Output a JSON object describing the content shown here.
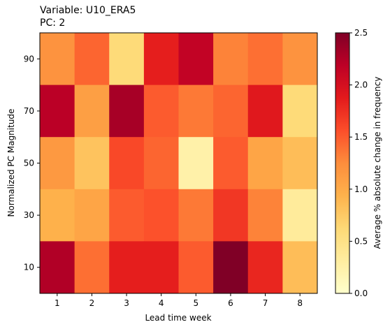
{
  "chart_data": {
    "type": "heatmap",
    "title_lines": [
      "Variable: U10_ERA5",
      "PC: 2"
    ],
    "xlabel": "Lead time week",
    "ylabel": "Normalized PC Magnitude",
    "x_categories": [
      "1",
      "2",
      "3",
      "4",
      "5",
      "6",
      "7",
      "8"
    ],
    "y_categories": [
      "90",
      "70",
      "50",
      "30",
      "10"
    ],
    "values": [
      [
        1.2,
        1.45,
        0.6,
        1.85,
        2.15,
        1.3,
        1.4,
        1.2
      ],
      [
        2.2,
        1.1,
        2.3,
        1.5,
        1.35,
        1.45,
        1.9,
        0.6
      ],
      [
        1.15,
        0.8,
        1.6,
        1.45,
        0.25,
        1.5,
        1.05,
        0.85
      ],
      [
        0.95,
        1.05,
        1.5,
        1.55,
        1.35,
        1.7,
        1.3,
        0.35
      ],
      [
        2.25,
        1.4,
        1.85,
        1.85,
        1.5,
        2.5,
        1.8,
        0.85
      ]
    ],
    "colormap": "YlOrRd",
    "colorbar": {
      "label": "Average % absolute change in frequency",
      "range": [
        0,
        2.5
      ],
      "ticks": [
        "0.0",
        "0.5",
        "1.0",
        "1.5",
        "2.0",
        "2.5"
      ]
    }
  }
}
